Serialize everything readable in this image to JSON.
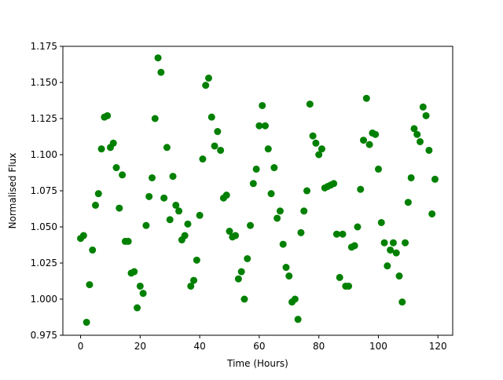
{
  "chart_data": {
    "type": "scatter",
    "xlabel": "Time (Hours)",
    "ylabel": "Normalised Flux",
    "color": "#008000",
    "x": [
      0,
      1,
      2,
      3,
      4,
      5,
      6,
      7,
      8,
      9,
      10,
      11,
      12,
      13,
      14,
      15,
      16,
      17,
      18,
      19,
      20,
      21,
      22,
      23,
      24,
      25,
      26,
      27,
      28,
      29,
      30,
      31,
      32,
      33,
      34,
      35,
      36,
      37,
      38,
      39,
      40,
      41,
      42,
      43,
      44,
      45,
      46,
      47,
      48,
      49,
      50,
      51,
      52,
      53,
      54,
      55,
      56,
      57,
      58,
      59,
      60,
      61,
      62,
      63,
      64,
      65,
      66,
      67,
      68,
      69,
      70,
      71,
      72,
      73,
      74,
      75,
      76,
      77,
      78,
      79,
      80,
      81,
      82,
      83,
      84,
      85,
      86,
      87,
      88,
      89,
      90,
      91,
      92,
      93,
      94,
      95,
      96,
      97,
      98,
      99,
      100,
      101,
      102,
      103,
      104,
      105,
      106,
      107,
      108,
      109,
      110,
      111,
      112,
      113,
      114,
      115,
      116,
      117,
      118,
      119
    ],
    "values": [
      1.042,
      1.044,
      0.984,
      1.01,
      1.034,
      1.065,
      1.073,
      1.104,
      1.126,
      1.127,
      1.105,
      1.108,
      1.091,
      1.063,
      1.086,
      1.04,
      1.04,
      1.018,
      1.019,
      0.994,
      1.009,
      1.004,
      1.051,
      1.071,
      1.084,
      1.125,
      1.167,
      1.157,
      1.07,
      1.105,
      1.055,
      1.085,
      1.065,
      1.061,
      1.041,
      1.044,
      1.052,
      1.009,
      1.013,
      1.027,
      1.058,
      1.097,
      1.148,
      1.153,
      1.126,
      1.106,
      1.116,
      1.103,
      1.07,
      1.072,
      1.047,
      1.043,
      1.044,
      1.014,
      1.019,
      1.0,
      1.028,
      1.051,
      1.08,
      1.09,
      1.12,
      1.134,
      1.12,
      1.104,
      1.073,
      1.091,
      1.056,
      1.061,
      1.038,
      1.022,
      1.016,
      0.998,
      1.0,
      0.986,
      1.046,
      1.061,
      1.075,
      1.135,
      1.113,
      1.108,
      1.1,
      1.104,
      1.077,
      1.078,
      1.079,
      1.08,
      1.045,
      1.015,
      1.045,
      1.009,
      1.009,
      1.036,
      1.037,
      1.05,
      1.076,
      1.11,
      1.139,
      1.107,
      1.115,
      1.114,
      1.09,
      1.053,
      1.039,
      1.023,
      1.034,
      1.039,
      1.032,
      1.016,
      0.998,
      1.039,
      1.067,
      1.084,
      1.118,
      1.114,
      1.109,
      1.133,
      1.127,
      1.103,
      1.059,
      1.083
    ],
    "xlim": [
      -5.95,
      124.95
    ],
    "xticks": [
      0,
      20,
      40,
      60,
      80,
      100,
      120
    ],
    "ylim": [
      0.975,
      1.175
    ],
    "yticks": [
      0.975,
      {
        "value": 1.0,
        "label": "1.000"
      },
      1.025,
      {
        "value": 1.05,
        "label": "1.050"
      },
      1.075,
      {
        "value": 1.1,
        "label": "1.100"
      },
      1.125,
      {
        "value": 1.15,
        "label": "1.150"
      },
      1.175
    ]
  }
}
